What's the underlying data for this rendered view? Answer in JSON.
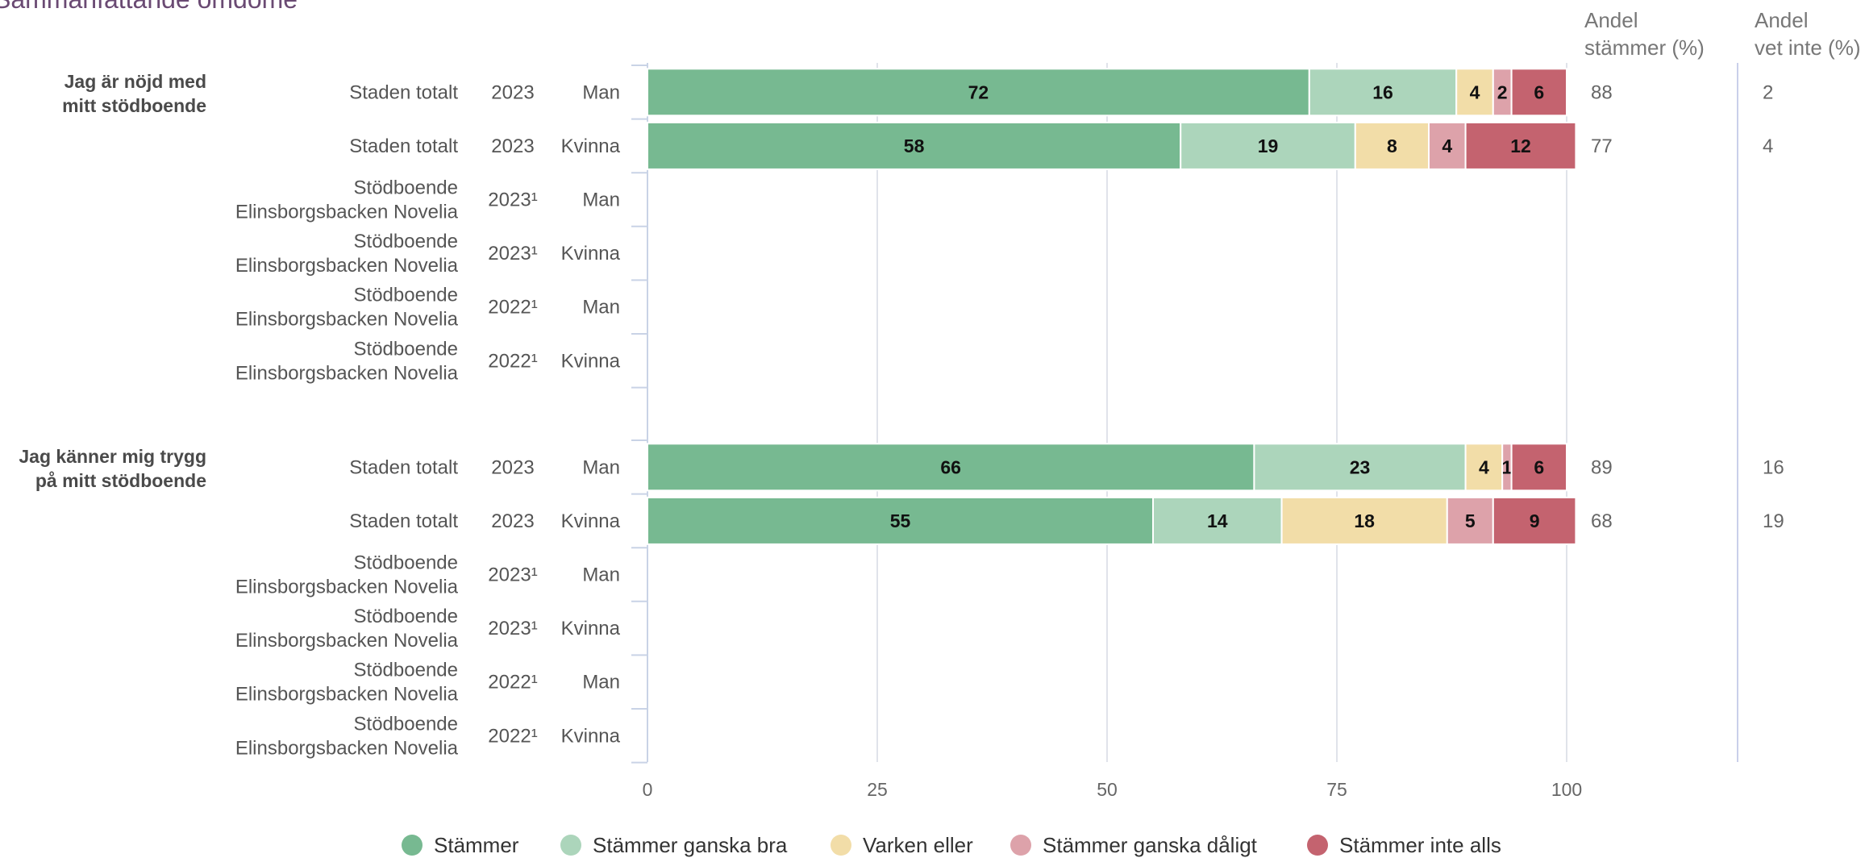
{
  "title": "Sammanfattande omdöme",
  "header_andel_stammer": [
    "Andel",
    "stämmer (%)"
  ],
  "header_andel_vet_inte": [
    "Andel",
    "vet inte (%)"
  ],
  "chart_data": {
    "type": "bar",
    "orientation": "horizontal",
    "stacked": true,
    "xlim": [
      0,
      100
    ],
    "xticks": [
      "0",
      "25",
      "50",
      "75",
      "100"
    ],
    "grid": true,
    "legend_placement": "bottom",
    "series": [
      {
        "name": "Stämmer",
        "color": "#77b991"
      },
      {
        "name": "Stämmer ganska bra",
        "color": "#acd5bb"
      },
      {
        "name": "Varken eller",
        "color": "#f2dda8"
      },
      {
        "name": "Stämmer ganska dåligt",
        "color": "#dda2aa"
      },
      {
        "name": "Stämmer inte alls",
        "color": "#c4636f"
      }
    ],
    "groups": [
      {
        "question": [
          "Jag är nöjd med",
          "mitt stödboende"
        ],
        "rows": [
          {
            "unit": [
              "Staden totalt"
            ],
            "year": "2023",
            "gender": "Man",
            "values": [
              72,
              16,
              4,
              2,
              6
            ],
            "andel_stammer": "88",
            "andel_vet_inte": "2"
          },
          {
            "unit": [
              "Staden totalt"
            ],
            "year": "2023",
            "gender": "Kvinna",
            "values": [
              58,
              19,
              8,
              4,
              12
            ],
            "andel_stammer": "77",
            "andel_vet_inte": "4"
          },
          {
            "unit": [
              "Stödboende",
              "Elinsborgsbacken Novelia"
            ],
            "year": "2023¹",
            "gender": "Man",
            "values": null,
            "andel_stammer": "",
            "andel_vet_inte": ""
          },
          {
            "unit": [
              "Stödboende",
              "Elinsborgsbacken Novelia"
            ],
            "year": "2023¹",
            "gender": "Kvinna",
            "values": null,
            "andel_stammer": "",
            "andel_vet_inte": ""
          },
          {
            "unit": [
              "Stödboende",
              "Elinsborgsbacken Novelia"
            ],
            "year": "2022¹",
            "gender": "Man",
            "values": null,
            "andel_stammer": "",
            "andel_vet_inte": ""
          },
          {
            "unit": [
              "Stödboende",
              "Elinsborgsbacken Novelia"
            ],
            "year": "2022¹",
            "gender": "Kvinna",
            "values": null,
            "andel_stammer": "",
            "andel_vet_inte": ""
          }
        ]
      },
      {
        "question": [
          "Jag känner mig trygg",
          "på mitt stödboende"
        ],
        "rows": [
          {
            "unit": [
              "Staden totalt"
            ],
            "year": "2023",
            "gender": "Man",
            "values": [
              66,
              23,
              4,
              1,
              6
            ],
            "andel_stammer": "89",
            "andel_vet_inte": "16"
          },
          {
            "unit": [
              "Staden totalt"
            ],
            "year": "2023",
            "gender": "Kvinna",
            "values": [
              55,
              14,
              18,
              5,
              9
            ],
            "andel_stammer": "68",
            "andel_vet_inte": "19"
          },
          {
            "unit": [
              "Stödboende",
              "Elinsborgsbacken Novelia"
            ],
            "year": "2023¹",
            "gender": "Man",
            "values": null,
            "andel_stammer": "",
            "andel_vet_inte": ""
          },
          {
            "unit": [
              "Stödboende",
              "Elinsborgsbacken Novelia"
            ],
            "year": "2023¹",
            "gender": "Kvinna",
            "values": null,
            "andel_stammer": "",
            "andel_vet_inte": ""
          },
          {
            "unit": [
              "Stödboende",
              "Elinsborgsbacken Novelia"
            ],
            "year": "2022¹",
            "gender": "Man",
            "values": null,
            "andel_stammer": "",
            "andel_vet_inte": ""
          },
          {
            "unit": [
              "Stödboende",
              "Elinsborgsbacken Novelia"
            ],
            "year": "2022¹",
            "gender": "Kvinna",
            "values": null,
            "andel_stammer": "",
            "andel_vet_inte": ""
          }
        ]
      }
    ]
  }
}
